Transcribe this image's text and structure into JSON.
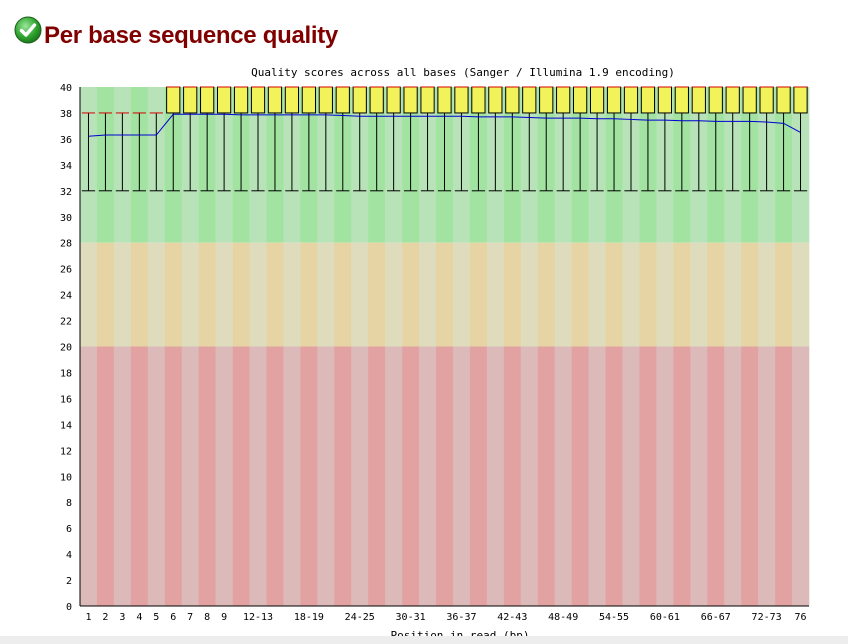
{
  "page": {
    "section_title": "Per base sequence quality",
    "status_icon": "check-circle-icon",
    "status_color": "#2a9d2a"
  },
  "chart_data": {
    "type": "boxplot",
    "title": "Quality scores across all bases (Sanger / Illumina 1.9 encoding)",
    "xlabel": "Position in read (bp)",
    "ylabel": "",
    "ylim": [
      0,
      40
    ],
    "yticks": [
      0,
      2,
      4,
      6,
      8,
      10,
      12,
      14,
      16,
      18,
      20,
      22,
      24,
      26,
      28,
      30,
      32,
      34,
      36,
      38,
      40
    ],
    "zones": [
      {
        "from": 28,
        "to": 40,
        "colors": [
          "#b8e3b8",
          "#a2e3a2"
        ]
      },
      {
        "from": 20,
        "to": 28,
        "colors": [
          "#dedcbc",
          "#e6d4a4"
        ]
      },
      {
        "from": 0,
        "to": 20,
        "colors": [
          "#dcbaba",
          "#e3a2a2"
        ]
      }
    ],
    "categories": [
      "1",
      "2",
      "3",
      "4",
      "5",
      "6",
      "7",
      "8",
      "9",
      "10-11",
      "12-13",
      "14-15",
      "16-17",
      "18-19",
      "20-21",
      "22-23",
      "24-25",
      "26-27",
      "28-29",
      "30-31",
      "32-33",
      "34-35",
      "36-37",
      "38-39",
      "40-41",
      "42-43",
      "44-45",
      "46-47",
      "48-49",
      "50-51",
      "52-53",
      "54-55",
      "56-57",
      "58-59",
      "60-61",
      "62-63",
      "64-65",
      "66-67",
      "68-69",
      "70-71",
      "72-73",
      "74-75",
      "76"
    ],
    "xtick_labels": [
      "1",
      "2",
      "3",
      "4",
      "5",
      "6",
      "7",
      "8",
      "9",
      "12-13",
      "18-19",
      "24-25",
      "30-31",
      "36-37",
      "42-43",
      "48-49",
      "54-55",
      "60-61",
      "66-67",
      "72-73",
      "76"
    ],
    "whisker_low": [
      32,
      32,
      32,
      32,
      32,
      32,
      32,
      32,
      32,
      32,
      32,
      32,
      32,
      32,
      32,
      32,
      32,
      32,
      32,
      32,
      32,
      32,
      32,
      32,
      32,
      32,
      32,
      32,
      32,
      32,
      32,
      32,
      32,
      32,
      32,
      32,
      32,
      32,
      32,
      32,
      32,
      32,
      32
    ],
    "q1": [
      38,
      38,
      38,
      38,
      38,
      38,
      38,
      38,
      38,
      38,
      38,
      38,
      38,
      38,
      38,
      38,
      38,
      38,
      38,
      38,
      38,
      38,
      38,
      38,
      38,
      38,
      38,
      38,
      38,
      38,
      38,
      38,
      38,
      38,
      38,
      38,
      38,
      38,
      38,
      38,
      38,
      38,
      38
    ],
    "median": [
      38,
      38,
      38,
      38,
      38,
      40,
      40,
      40,
      40,
      40,
      40,
      40,
      40,
      40,
      40,
      40,
      40,
      40,
      40,
      40,
      40,
      40,
      40,
      40,
      40,
      40,
      40,
      40,
      40,
      40,
      40,
      40,
      40,
      40,
      40,
      40,
      40,
      40,
      40,
      40,
      40,
      40,
      40
    ],
    "q3": [
      38,
      38,
      38,
      38,
      38,
      40,
      40,
      40,
      40,
      40,
      40,
      40,
      40,
      40,
      40,
      40,
      40,
      40,
      40,
      40,
      40,
      40,
      40,
      40,
      40,
      40,
      40,
      40,
      40,
      40,
      40,
      40,
      40,
      40,
      40,
      40,
      40,
      40,
      40,
      40,
      40,
      40,
      40
    ],
    "whisker_high": [
      38,
      38,
      38,
      38,
      38,
      40,
      40,
      40,
      40,
      40,
      40,
      40,
      40,
      40,
      40,
      40,
      40,
      40,
      40,
      40,
      40,
      40,
      40,
      40,
      40,
      40,
      40,
      40,
      40,
      40,
      40,
      40,
      40,
      40,
      40,
      40,
      40,
      40,
      40,
      40,
      40,
      40,
      40
    ],
    "mean": [
      36.2,
      36.3,
      36.3,
      36.3,
      36.3,
      37.9,
      37.9,
      37.9,
      37.9,
      37.85,
      37.85,
      37.85,
      37.85,
      37.85,
      37.85,
      37.8,
      37.75,
      37.75,
      37.75,
      37.75,
      37.75,
      37.75,
      37.75,
      37.7,
      37.7,
      37.7,
      37.65,
      37.6,
      37.6,
      37.6,
      37.55,
      37.55,
      37.5,
      37.45,
      37.45,
      37.4,
      37.4,
      37.35,
      37.35,
      37.35,
      37.3,
      37.2,
      36.5
    ],
    "box_color": "#f2f25a",
    "box_border": "#000000",
    "median_color": "#d40000",
    "mean_color": "#0000d0",
    "grid": false,
    "legend": "none"
  }
}
